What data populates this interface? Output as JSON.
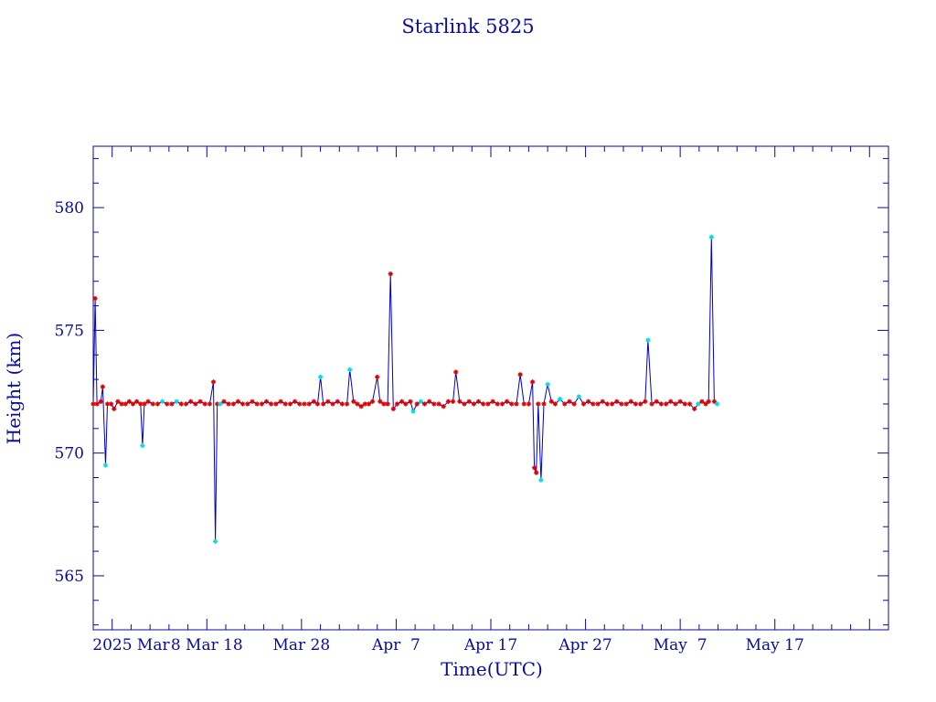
{
  "chart_data": {
    "type": "line",
    "title": "Starlink 5825",
    "xlabel": "Time(UTC)",
    "ylabel": "Height (km)",
    "x_start_date": "2025-02-24",
    "xlim": [
      0,
      84
    ],
    "ylim": [
      562.8,
      582.5
    ],
    "yticks": [
      565,
      570,
      575,
      580
    ],
    "xticks": [
      {
        "x": 4,
        "label": "2025 Mar"
      },
      {
        "x": 12,
        "label": "8 Mar 18"
      },
      {
        "x": 22,
        "label": "Mar 28"
      },
      {
        "x": 32,
        "label": "Apr  7"
      },
      {
        "x": 42,
        "label": "Apr 17"
      },
      {
        "x": 52,
        "label": "Apr 27"
      },
      {
        "x": 62,
        "label": "May  7"
      },
      {
        "x": 72,
        "label": "May 17"
      }
    ],
    "grid": false,
    "colors": {
      "axis": "#0a0aa0",
      "line": "#0000cc",
      "marker_a": "#dd0000",
      "marker_b": "#00dddd"
    },
    "points": [
      [
        0.0,
        572.0,
        "r"
      ],
      [
        0.2,
        576.3,
        "r"
      ],
      [
        0.4,
        572.0,
        "r"
      ],
      [
        0.8,
        572.1,
        "r"
      ],
      [
        1.0,
        572.7,
        "r"
      ],
      [
        1.3,
        569.5,
        "c"
      ],
      [
        1.5,
        572.0,
        "r"
      ],
      [
        1.9,
        572.0,
        "r"
      ],
      [
        2.2,
        571.8,
        "r"
      ],
      [
        2.6,
        572.1,
        "r"
      ],
      [
        3.0,
        572.0,
        "r"
      ],
      [
        3.4,
        572.0,
        "r"
      ],
      [
        3.8,
        572.1,
        "r"
      ],
      [
        4.2,
        572.0,
        "r"
      ],
      [
        4.6,
        572.1,
        "r"
      ],
      [
        5.0,
        572.0,
        "r"
      ],
      [
        5.2,
        570.3,
        "c"
      ],
      [
        5.4,
        572.0,
        "r"
      ],
      [
        5.8,
        572.1,
        "r"
      ],
      [
        6.3,
        572.0,
        "r"
      ],
      [
        6.8,
        572.0,
        "r"
      ],
      [
        7.3,
        572.1,
        "c"
      ],
      [
        7.8,
        572.0,
        "r"
      ],
      [
        8.3,
        572.0,
        "r"
      ],
      [
        8.8,
        572.1,
        "c"
      ],
      [
        9.3,
        572.0,
        "r"
      ],
      [
        9.8,
        572.0,
        "r"
      ],
      [
        10.3,
        572.1,
        "r"
      ],
      [
        10.8,
        572.0,
        "r"
      ],
      [
        11.3,
        572.1,
        "r"
      ],
      [
        11.8,
        572.0,
        "r"
      ],
      [
        12.3,
        572.0,
        "r"
      ],
      [
        12.7,
        572.9,
        "r"
      ],
      [
        12.9,
        566.4,
        "c"
      ],
      [
        13.1,
        572.0,
        "r"
      ],
      [
        13.4,
        572.0,
        "c"
      ],
      [
        13.8,
        572.1,
        "r"
      ],
      [
        14.3,
        572.0,
        "r"
      ],
      [
        14.8,
        572.0,
        "r"
      ],
      [
        15.3,
        572.1,
        "r"
      ],
      [
        15.8,
        572.0,
        "r"
      ],
      [
        16.3,
        572.0,
        "r"
      ],
      [
        16.8,
        572.1,
        "r"
      ],
      [
        17.3,
        572.0,
        "r"
      ],
      [
        17.8,
        572.0,
        "r"
      ],
      [
        18.3,
        572.1,
        "r"
      ],
      [
        18.8,
        572.0,
        "r"
      ],
      [
        19.3,
        572.0,
        "r"
      ],
      [
        19.8,
        572.1,
        "r"
      ],
      [
        20.3,
        572.0,
        "r"
      ],
      [
        20.8,
        572.0,
        "r"
      ],
      [
        21.3,
        572.1,
        "r"
      ],
      [
        21.8,
        572.0,
        "r"
      ],
      [
        22.3,
        572.0,
        "r"
      ],
      [
        22.8,
        572.0,
        "r"
      ],
      [
        23.3,
        572.1,
        "r"
      ],
      [
        23.7,
        572.0,
        "r"
      ],
      [
        24.0,
        573.1,
        "c"
      ],
      [
        24.3,
        572.0,
        "r"
      ],
      [
        24.8,
        572.1,
        "r"
      ],
      [
        25.3,
        572.0,
        "r"
      ],
      [
        25.8,
        572.1,
        "r"
      ],
      [
        26.3,
        572.0,
        "r"
      ],
      [
        26.8,
        572.0,
        "r"
      ],
      [
        27.1,
        573.4,
        "c"
      ],
      [
        27.5,
        572.1,
        "r"
      ],
      [
        27.9,
        572.0,
        "r"
      ],
      [
        28.3,
        571.9,
        "r"
      ],
      [
        28.7,
        572.0,
        "r"
      ],
      [
        29.1,
        572.0,
        "r"
      ],
      [
        29.5,
        572.1,
        "r"
      ],
      [
        30.0,
        573.1,
        "r"
      ],
      [
        30.3,
        572.1,
        "r"
      ],
      [
        30.7,
        572.0,
        "r"
      ],
      [
        31.1,
        572.0,
        "r"
      ],
      [
        31.4,
        577.3,
        "r"
      ],
      [
        31.7,
        571.8,
        "r"
      ],
      [
        32.1,
        572.0,
        "r"
      ],
      [
        32.6,
        572.1,
        "r"
      ],
      [
        33.0,
        572.0,
        "r"
      ],
      [
        33.5,
        572.1,
        "r"
      ],
      [
        33.8,
        571.7,
        "c"
      ],
      [
        34.2,
        572.0,
        "r"
      ],
      [
        34.6,
        572.1,
        "c"
      ],
      [
        35.0,
        572.0,
        "r"
      ],
      [
        35.5,
        572.1,
        "r"
      ],
      [
        36.0,
        572.0,
        "r"
      ],
      [
        36.5,
        572.0,
        "r"
      ],
      [
        37.0,
        571.9,
        "r"
      ],
      [
        37.5,
        572.1,
        "r"
      ],
      [
        38.0,
        572.1,
        "r"
      ],
      [
        38.3,
        573.3,
        "r"
      ],
      [
        38.7,
        572.1,
        "r"
      ],
      [
        39.2,
        572.0,
        "r"
      ],
      [
        39.7,
        572.1,
        "r"
      ],
      [
        40.2,
        572.0,
        "r"
      ],
      [
        40.7,
        572.1,
        "r"
      ],
      [
        41.2,
        572.0,
        "r"
      ],
      [
        41.7,
        572.0,
        "r"
      ],
      [
        42.2,
        572.1,
        "r"
      ],
      [
        42.7,
        572.0,
        "r"
      ],
      [
        43.2,
        572.0,
        "r"
      ],
      [
        43.7,
        572.1,
        "r"
      ],
      [
        44.2,
        572.0,
        "r"
      ],
      [
        44.7,
        572.0,
        "r"
      ],
      [
        45.1,
        573.2,
        "r"
      ],
      [
        45.5,
        572.0,
        "r"
      ],
      [
        46.0,
        572.0,
        "r"
      ],
      [
        46.4,
        572.9,
        "r"
      ],
      [
        46.6,
        569.4,
        "r"
      ],
      [
        46.8,
        569.2,
        "r"
      ],
      [
        47.0,
        572.0,
        "r"
      ],
      [
        47.3,
        568.9,
        "c"
      ],
      [
        47.6,
        572.0,
        "r"
      ],
      [
        48.0,
        572.8,
        "c"
      ],
      [
        48.4,
        572.1,
        "r"
      ],
      [
        48.8,
        572.0,
        "r"
      ],
      [
        49.3,
        572.2,
        "c"
      ],
      [
        49.8,
        572.0,
        "r"
      ],
      [
        50.3,
        572.1,
        "r"
      ],
      [
        50.8,
        572.0,
        "r"
      ],
      [
        51.3,
        572.3,
        "c"
      ],
      [
        51.8,
        572.0,
        "r"
      ],
      [
        52.3,
        572.1,
        "r"
      ],
      [
        52.8,
        572.0,
        "r"
      ],
      [
        53.3,
        572.0,
        "r"
      ],
      [
        53.8,
        572.1,
        "r"
      ],
      [
        54.3,
        572.0,
        "r"
      ],
      [
        54.8,
        572.0,
        "r"
      ],
      [
        55.3,
        572.1,
        "r"
      ],
      [
        55.8,
        572.0,
        "r"
      ],
      [
        56.3,
        572.0,
        "r"
      ],
      [
        56.8,
        572.1,
        "r"
      ],
      [
        57.3,
        572.0,
        "r"
      ],
      [
        57.8,
        572.0,
        "r"
      ],
      [
        58.3,
        572.1,
        "r"
      ],
      [
        58.6,
        574.6,
        "c"
      ],
      [
        59.0,
        572.0,
        "r"
      ],
      [
        59.5,
        572.1,
        "r"
      ],
      [
        60.0,
        572.0,
        "r"
      ],
      [
        60.5,
        572.0,
        "r"
      ],
      [
        61.0,
        572.1,
        "r"
      ],
      [
        61.5,
        572.0,
        "r"
      ],
      [
        62.0,
        572.1,
        "r"
      ],
      [
        62.5,
        572.0,
        "r"
      ],
      [
        63.0,
        572.0,
        "r"
      ],
      [
        63.5,
        571.8,
        "r"
      ],
      [
        63.9,
        572.0,
        "c"
      ],
      [
        64.3,
        572.1,
        "r"
      ],
      [
        64.7,
        572.0,
        "r"
      ],
      [
        65.0,
        572.1,
        "r"
      ],
      [
        65.3,
        578.8,
        "c"
      ],
      [
        65.6,
        572.1,
        "r"
      ],
      [
        65.9,
        572.0,
        "c"
      ]
    ]
  }
}
